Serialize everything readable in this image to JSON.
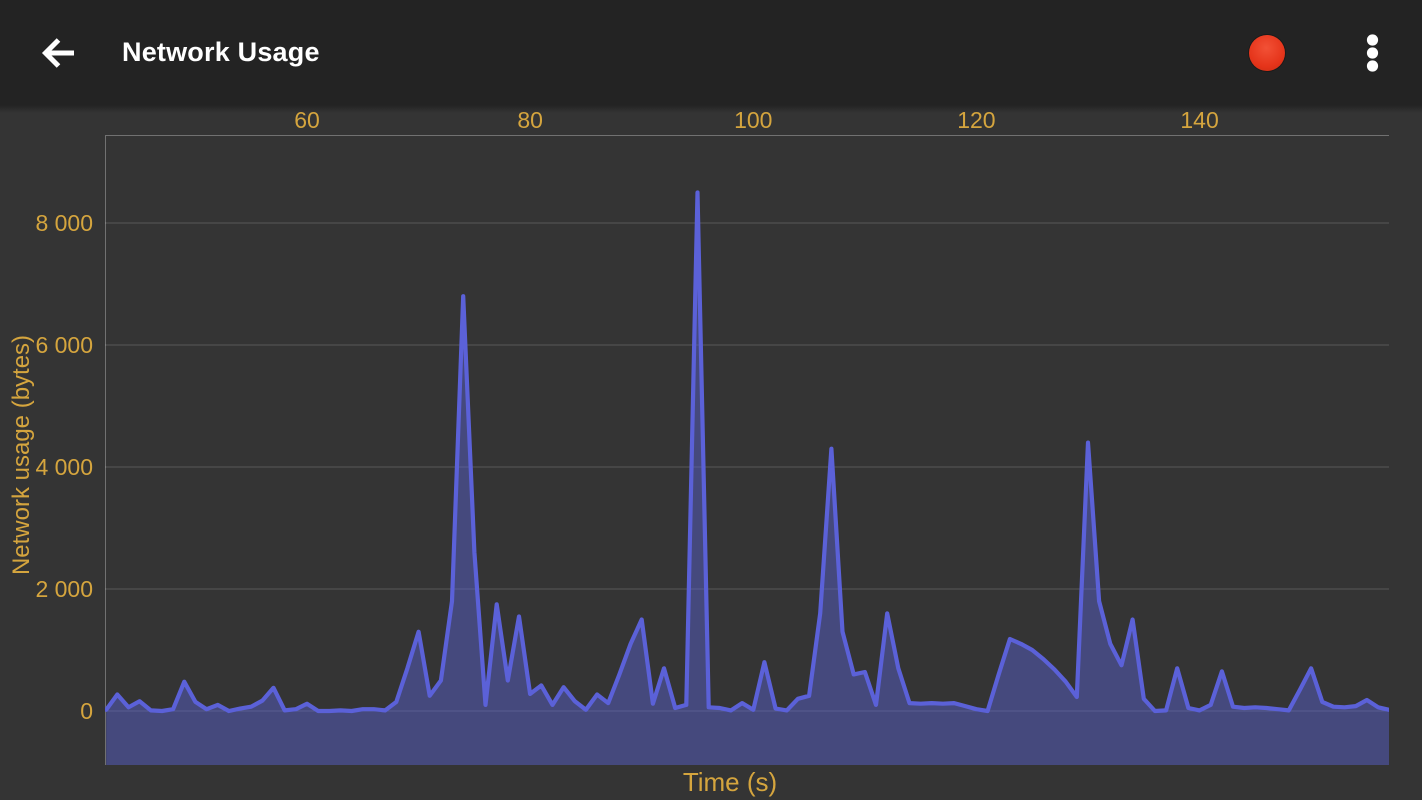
{
  "app_bar": {
    "title": "Network Usage",
    "back_icon": "arrow-left",
    "record_indicator_icon": "record-dot",
    "overflow_icon": "vertical-ellipsis"
  },
  "colors": {
    "appbar_bg": "#232323",
    "content_bg": "#343434",
    "title_text": "#ffffff",
    "axis_text": "#d5a53e",
    "grid_line": "rgba(255,255,255,0.18)",
    "plot_border": "rgba(255,255,255,0.30)",
    "series_line": "#5b61d8",
    "series_fill": "rgba(91,99,214,0.45)",
    "record_red": "#e5341a"
  },
  "chart_data": {
    "type": "area",
    "title": "Network Usage",
    "xlabel": "Time (s)",
    "ylabel": "Network usage (bytes)",
    "legend": "none",
    "grid": "horizontal",
    "x_ticks": [
      60,
      80,
      100,
      120,
      140
    ],
    "y_ticks": [
      {
        "value": 0,
        "label": "0"
      },
      {
        "value": 2000,
        "label": "2 000"
      },
      {
        "value": 4000,
        "label": "4 000"
      },
      {
        "value": 6000,
        "label": "6 000"
      },
      {
        "value": 8000,
        "label": "8 000"
      }
    ],
    "xlim": [
      42,
      157
    ],
    "ylim": [
      -870,
      9450
    ],
    "x": [
      42,
      43,
      44,
      45,
      46,
      47,
      48,
      49,
      50,
      51,
      52,
      53,
      54,
      55,
      56,
      57,
      58,
      59,
      60,
      61,
      62,
      63,
      64,
      65,
      66,
      67,
      68,
      69,
      70,
      71,
      72,
      73,
      74,
      75,
      76,
      77,
      78,
      79,
      80,
      81,
      82,
      83,
      84,
      85,
      86,
      87,
      88,
      89,
      90,
      91,
      92,
      93,
      94,
      95,
      96,
      97,
      98,
      99,
      100,
      101,
      102,
      103,
      104,
      105,
      106,
      107,
      108,
      109,
      110,
      111,
      112,
      113,
      114,
      115,
      116,
      117,
      118,
      119,
      120,
      121,
      122,
      123,
      124,
      125,
      126,
      127,
      128,
      129,
      130,
      131,
      132,
      133,
      134,
      135,
      136,
      137,
      138,
      139,
      140,
      141,
      142,
      143,
      144,
      145,
      146,
      147,
      148,
      149,
      150,
      151,
      152,
      153,
      154,
      155,
      156,
      157
    ],
    "y": [
      20,
      270,
      60,
      160,
      10,
      0,
      30,
      480,
      150,
      30,
      100,
      0,
      40,
      70,
      170,
      380,
      10,
      30,
      120,
      0,
      0,
      10,
      0,
      30,
      30,
      10,
      150,
      700,
      1300,
      250,
      500,
      1800,
      6800,
      2600,
      100,
      1750,
      500,
      1550,
      280,
      420,
      100,
      390,
      160,
      20,
      270,
      130,
      600,
      1100,
      1500,
      120,
      700,
      50,
      100,
      8500,
      60,
      50,
      10,
      130,
      20,
      800,
      40,
      10,
      200,
      250,
      1600,
      4300,
      1300,
      600,
      640,
      100,
      1600,
      700,
      130,
      120,
      130,
      120,
      130,
      80,
      30,
      0,
      600,
      1180,
      1100,
      1000,
      850,
      680,
      480,
      230,
      4400,
      1800,
      1100,
      750,
      1500,
      200,
      0,
      10,
      700,
      50,
      10,
      100,
      650,
      70,
      50,
      60,
      50,
      30,
      10,
      350,
      700,
      150,
      70,
      60,
      80,
      180,
      60,
      20
    ]
  }
}
